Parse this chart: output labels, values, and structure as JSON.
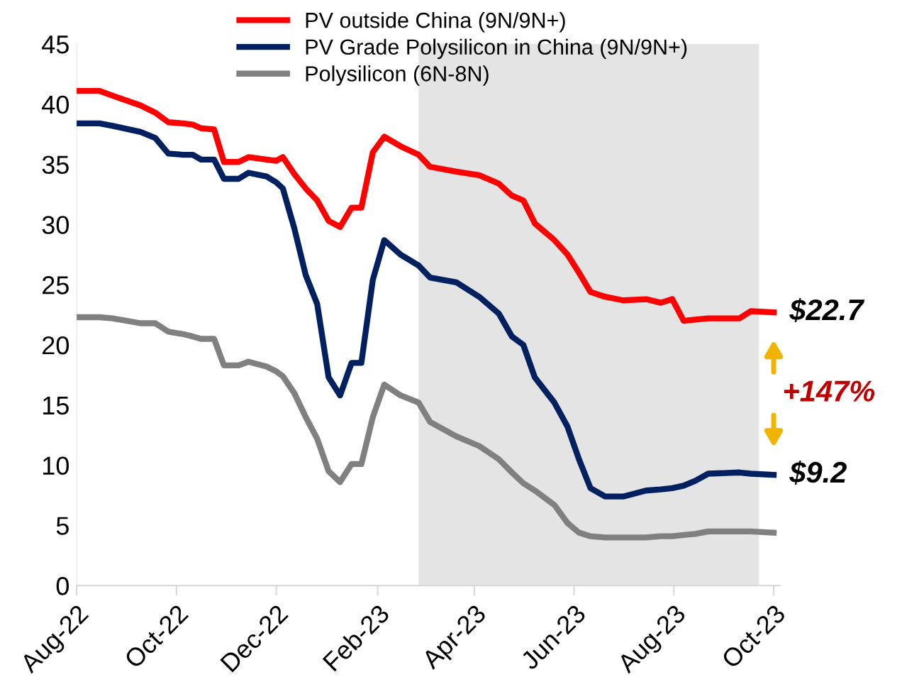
{
  "chart_data": {
    "type": "line",
    "x": [
      "2022-08-02",
      "2022-08-15",
      "2022-08-23",
      "2022-09-09",
      "2022-09-18",
      "2022-09-26",
      "2022-10-05",
      "2022-10-11",
      "2022-10-16",
      "2022-10-24",
      "2022-10-30",
      "2022-11-08",
      "2022-11-14",
      "2022-11-25",
      "2022-12-01",
      "2022-12-05",
      "2022-12-12",
      "2022-12-19",
      "2022-12-26",
      "2023-01-02",
      "2023-01-09",
      "2023-01-16",
      "2023-01-22",
      "2023-01-29",
      "2023-02-05",
      "2023-02-15",
      "2023-02-26",
      "2023-03-05",
      "2023-03-21",
      "2023-04-04",
      "2023-04-16",
      "2023-04-24",
      "2023-05-01",
      "2023-05-08",
      "2023-05-20",
      "2023-05-28",
      "2023-06-04",
      "2023-06-11",
      "2023-06-20",
      "2023-07-01",
      "2023-07-15",
      "2023-07-24",
      "2023-07-31",
      "2023-08-07",
      "2023-08-14",
      "2023-08-22",
      "2023-09-10",
      "2023-09-17",
      "2023-10-01"
    ],
    "series": [
      {
        "name": "PV outside China (9N/9N+)",
        "color": "#ff0000",
        "values": [
          41.1,
          41.1,
          40.7,
          39.9,
          39.3,
          38.5,
          38.4,
          38.3,
          38.0,
          37.9,
          35.2,
          35.2,
          35.6,
          35.4,
          35.3,
          35.6,
          34.2,
          33.0,
          32.0,
          30.3,
          29.8,
          31.4,
          31.4,
          36.0,
          37.3,
          36.5,
          35.8,
          34.8,
          34.4,
          34.1,
          33.4,
          32.4,
          32.0,
          30.1,
          28.7,
          27.5,
          26.0,
          24.4,
          24.0,
          23.7,
          23.8,
          23.5,
          23.8,
          22.0,
          22.1,
          22.2,
          22.2,
          22.8,
          22.7
        ]
      },
      {
        "name": "PV Grade Polysilicon in China (9N/9N+)",
        "color": "#002060",
        "values": [
          38.4,
          38.4,
          38.2,
          37.7,
          37.2,
          35.9,
          35.8,
          35.8,
          35.4,
          35.4,
          33.8,
          33.8,
          34.3,
          34.0,
          33.5,
          33.0,
          29.7,
          25.8,
          23.4,
          17.3,
          15.8,
          18.5,
          18.5,
          25.4,
          28.7,
          27.5,
          26.6,
          25.6,
          25.2,
          24.0,
          22.6,
          20.7,
          20.0,
          17.3,
          15.2,
          13.2,
          10.5,
          8.1,
          7.4,
          7.4,
          7.9,
          8.0,
          8.1,
          8.3,
          8.7,
          9.3,
          9.4,
          9.3,
          9.2
        ]
      },
      {
        "name": "Polysilicon (6N-8N)",
        "color": "#808080",
        "values": [
          22.3,
          22.3,
          22.2,
          21.8,
          21.8,
          21.1,
          20.9,
          20.7,
          20.5,
          20.5,
          18.3,
          18.3,
          18.6,
          18.2,
          17.8,
          17.4,
          16.0,
          14.0,
          12.2,
          9.5,
          8.6,
          10.1,
          10.1,
          14.0,
          16.7,
          15.8,
          15.2,
          13.6,
          12.4,
          11.6,
          10.5,
          9.4,
          8.5,
          7.9,
          6.7,
          5.2,
          4.4,
          4.1,
          4.0,
          4.0,
          4.0,
          4.1,
          4.1,
          4.2,
          4.3,
          4.5,
          4.5,
          4.5,
          4.4
        ]
      }
    ],
    "xlim": [
      "2022-08-01",
      "2023-10-05"
    ],
    "xticks": [
      {
        "value": "2022-08-01",
        "label": "Aug-22"
      },
      {
        "value": "2022-10-01",
        "label": "Oct-22"
      },
      {
        "value": "2022-12-01",
        "label": "Dec-22"
      },
      {
        "value": "2023-02-01",
        "label": "Feb-23"
      },
      {
        "value": "2023-04-01",
        "label": "Apr-23"
      },
      {
        "value": "2023-06-01",
        "label": "Jun-23"
      },
      {
        "value": "2023-08-01",
        "label": "Aug-23"
      },
      {
        "value": "2023-10-01",
        "label": "Oct-23"
      }
    ],
    "ylim": [
      0,
      45
    ],
    "yticks": [
      0,
      5,
      10,
      15,
      20,
      25,
      30,
      35,
      40,
      45
    ],
    "grid": false,
    "legend": "top",
    "marker": "none",
    "line_style": "solid",
    "bands": [
      {
        "axis": "x",
        "from": "2023-02-26",
        "to": "2023-09-22",
        "color": "#e4e4e4"
      }
    ],
    "annotations": [
      {
        "text": "$22.7",
        "x": "2023-10-01",
        "y": 22.7
      },
      {
        "text": "$9.2",
        "x": "2023-10-01",
        "y": 9.2
      },
      "+147%"
    ]
  }
}
